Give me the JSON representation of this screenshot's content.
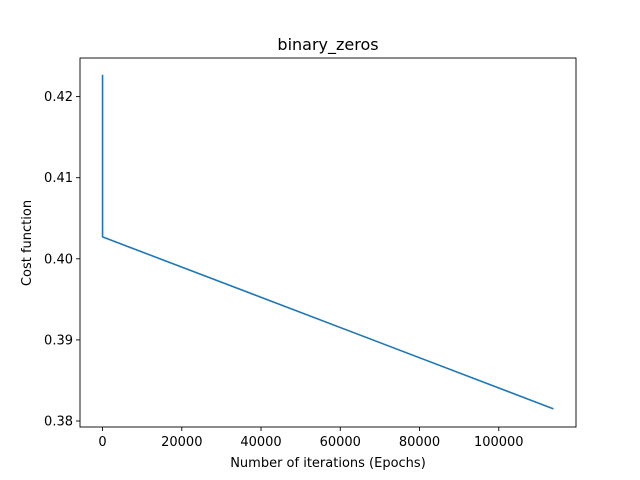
{
  "chart_data": {
    "type": "line",
    "title": "binary_zeros",
    "xlabel": "Number of iterations (Epochs)",
    "ylabel": "Cost function",
    "xlim": [
      -5690,
      119490
    ],
    "ylim": [
      0.37926,
      0.42476
    ],
    "xticks": [
      0,
      20000,
      40000,
      60000,
      80000,
      100000
    ],
    "xtick_labels": [
      "0",
      "20000",
      "40000",
      "60000",
      "80000",
      "100000"
    ],
    "yticks": [
      0.38,
      0.39,
      0.4,
      0.41,
      0.42
    ],
    "ytick_labels": [
      "0.38",
      "0.39",
      "0.40",
      "0.41",
      "0.42"
    ],
    "grid": false,
    "series": [
      {
        "color": "#1f77b4",
        "x": [
          0,
          0,
          113800
        ],
        "y": [
          0.4227,
          0.4027,
          0.3815
        ]
      }
    ]
  }
}
